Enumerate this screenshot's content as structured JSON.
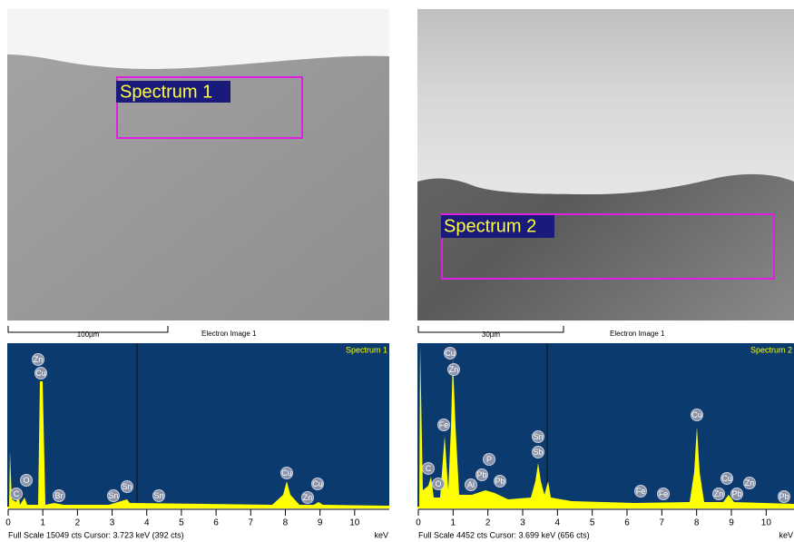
{
  "panels": [
    {
      "image": {
        "spectrum_label": "Spectrum 1",
        "scale_bar": "100µm",
        "caption": "Electron Image 1"
      },
      "spectrum": {
        "title": "Spectrum 1",
        "xlim": [
          0,
          11
        ],
        "xticks": [
          0,
          1,
          2,
          3,
          4,
          5,
          6,
          7,
          8,
          9,
          10
        ],
        "unit": "keV",
        "footer": "Full Scale 15049 cts  Cursor: 3.723 keV (392 cts)",
        "peaks": [
          "Zn",
          "Cu",
          "C",
          "O",
          "Br",
          "Sn",
          "Sn",
          "Sn",
          "Cu",
          "Zn",
          "Cu"
        ]
      }
    },
    {
      "image": {
        "spectrum_label": "Spectrum 2",
        "scale_bar": "30µm",
        "caption": "Electron Image 1"
      },
      "spectrum": {
        "title": "Spectrum 2",
        "xlim": [
          0,
          10.8
        ],
        "xticks": [
          0,
          1,
          2,
          3,
          4,
          5,
          6,
          7,
          8,
          9,
          10
        ],
        "unit": "keV",
        "footer": "Full Scale 4452 cts  Cursor: 3.699 keV (656 cts)",
        "peaks": [
          "Cu",
          "Zn",
          "Fe",
          "C",
          "O",
          "Al",
          "Pb",
          "P",
          "Pb",
          "Sn",
          "Sb",
          "Fe",
          "Fe",
          "Cu",
          "Cu",
          "Zn",
          "Pb",
          "Zn",
          "Pb"
        ]
      }
    }
  ]
}
